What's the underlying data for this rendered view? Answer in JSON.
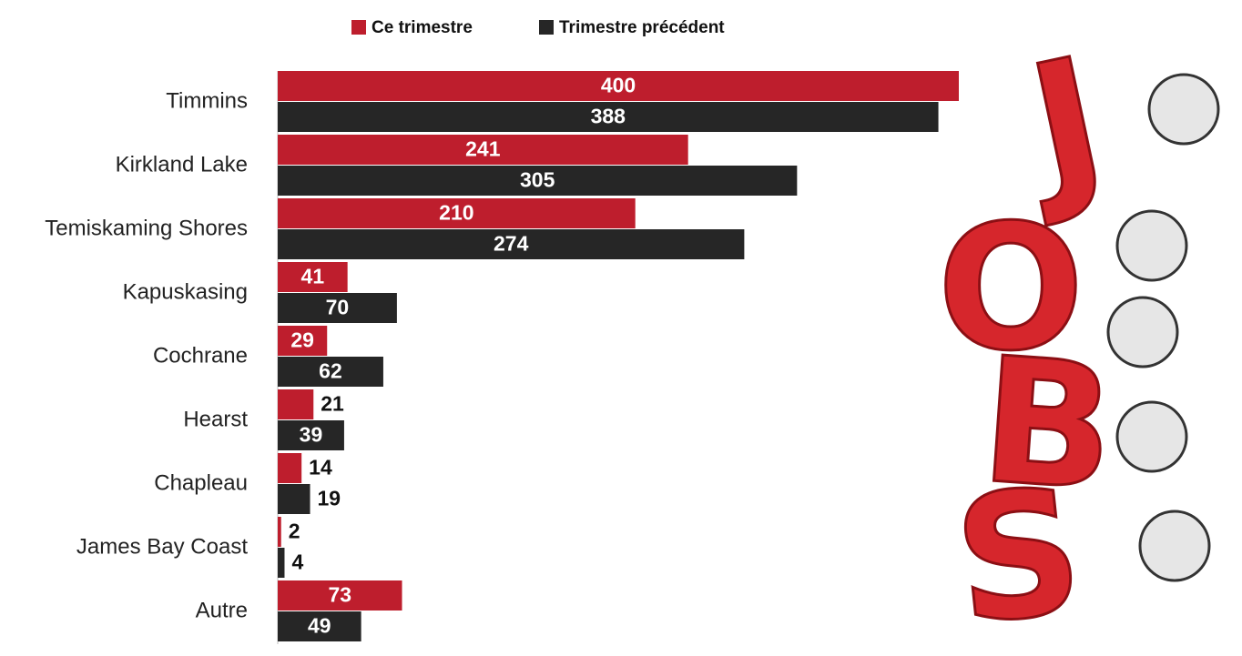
{
  "chart_data": {
    "type": "bar",
    "orientation": "horizontal",
    "categories": [
      "Timmins",
      "Kirkland Lake",
      "Temiskaming Shores",
      "Kapuskasing",
      "Cochrane",
      "Hearst",
      "Chapleau",
      "James Bay Coast",
      "Autre"
    ],
    "series": [
      {
        "name": "Ce trimestre",
        "color": "#be1e2d",
        "values": [
          400,
          241,
          210,
          41,
          29,
          21,
          14,
          2,
          73
        ]
      },
      {
        "name": "Trimestre précédent",
        "color": "#262626",
        "values": [
          388,
          305,
          274,
          70,
          62,
          39,
          19,
          4,
          49
        ]
      }
    ],
    "xlim": [
      0,
      400
    ],
    "legend": "top",
    "illustration_letters": [
      "J",
      "O",
      "B",
      "S"
    ]
  }
}
